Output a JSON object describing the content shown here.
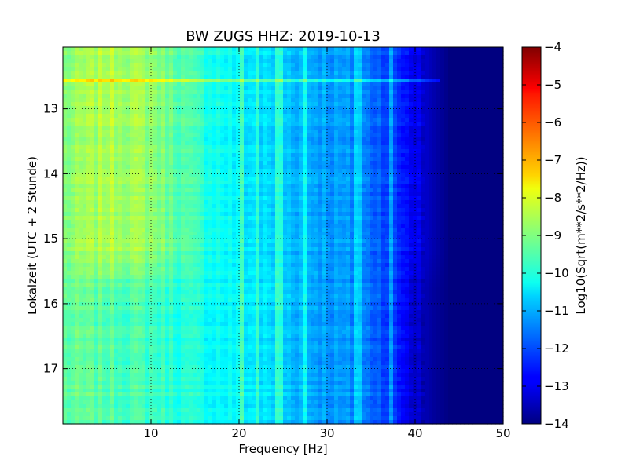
{
  "chart_data": {
    "type": "heatmap",
    "title": "BW ZUGS HHZ: 2019-10-13",
    "xlabel": "Frequency [Hz]",
    "ylabel": "Lokalzeit (UTC + 2 Stunde)",
    "xlim": [
      0,
      50
    ],
    "ylim": [
      17.85,
      12.05
    ],
    "x_ticks": [
      10,
      20,
      30,
      40,
      50
    ],
    "x_tick_labels": [
      "10",
      "20",
      "30",
      "40",
      "50"
    ],
    "y_ticks": [
      13,
      14,
      15,
      16,
      17
    ],
    "y_tick_labels": [
      "13",
      "14",
      "15",
      "16",
      "17"
    ],
    "grid": true,
    "colorbar": {
      "label": "Log10(Sqrt(m**2/s**2/Hz))",
      "range": [
        -14,
        -4
      ],
      "ticks": [
        -4,
        -5,
        -6,
        -7,
        -8,
        -9,
        -10,
        -11,
        -12,
        -13,
        -14
      ],
      "tick_labels": [
        "−4",
        "−5",
        "−6",
        "−7",
        "−8",
        "−9",
        "−10",
        "−11",
        "−12",
        "−13",
        "−14"
      ],
      "colormap": "jet"
    },
    "frequency_profile_hz": [
      0,
      5,
      10,
      15,
      20,
      24,
      28,
      33,
      36,
      38,
      40,
      42,
      44,
      50
    ],
    "frequency_profile_value": [
      -9.0,
      -8.5,
      -8.8,
      -9.7,
      -10.4,
      -10.7,
      -11.0,
      -11.4,
      -11.8,
      -12.3,
      -12.9,
      -13.5,
      -14.0,
      -14.0
    ],
    "frequency_profile_value_late": [
      -9.3,
      -9.4,
      -9.6,
      -10.0,
      -10.3,
      -10.6,
      -11.0,
      -11.4,
      -11.8,
      -12.4,
      -13.2,
      -13.7,
      -14.0,
      -14.0
    ],
    "quiet_transition_hour": 15.5,
    "bright_vertical_lines_hz": [
      20.3,
      22.2,
      24.6,
      27.4,
      33.5,
      37.2
    ],
    "bright_horizontal_band_hour": 12.55
  }
}
